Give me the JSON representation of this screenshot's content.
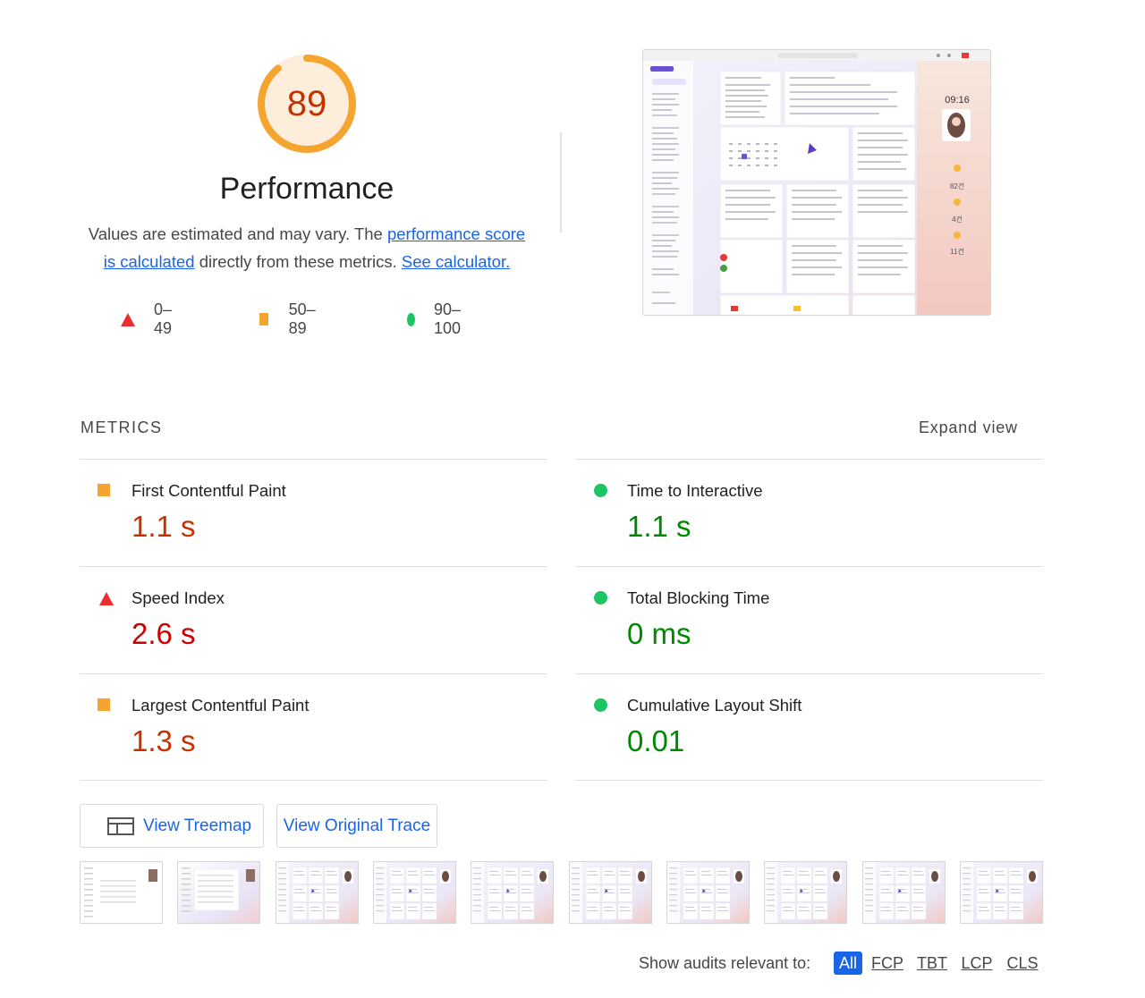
{
  "score": {
    "value": "89",
    "fraction": 0.89,
    "title": "Performance",
    "desc_prefix": "Values are estimated and may vary. The ",
    "desc_link_1a": "performance score",
    "desc_link_1b": "is calculated",
    "desc_middle": " directly from these metrics. ",
    "desc_link_2": "See calculator.",
    "color_ring": "#f5a52f",
    "color_track": "#fdeedb",
    "color_text": "#c33300"
  },
  "legend": [
    {
      "icon": "triangle-icon",
      "label": "0–49"
    },
    {
      "icon": "square-icon",
      "label": "50–89"
    },
    {
      "icon": "circle-icon",
      "label": "90–100"
    }
  ],
  "metrics": {
    "header": "METRICS",
    "expand": "Expand view",
    "items": [
      {
        "label": "First Contentful Paint",
        "value": "1.1 s",
        "rating": "average"
      },
      {
        "label": "Time to Interactive",
        "value": "1.1 s",
        "rating": "pass"
      },
      {
        "label": "Speed Index",
        "value": "2.6 s",
        "rating": "fail"
      },
      {
        "label": "Total Blocking Time",
        "value": "0 ms",
        "rating": "pass"
      },
      {
        "label": "Largest Contentful Paint",
        "value": "1.3 s",
        "rating": "average"
      },
      {
        "label": "Cumulative Layout Shift",
        "value": "0.01",
        "rating": "pass"
      }
    ]
  },
  "buttons": {
    "treemap": "View Treemap",
    "trace": "View Original Trace"
  },
  "final_screenshot": {
    "time": "09:16",
    "stat_1": "82건",
    "stat_2": "4건",
    "stat_3": "11건"
  },
  "filter": {
    "label": "Show audits relevant to:",
    "chips": [
      "All",
      "FCP",
      "TBT",
      "LCP",
      "CLS"
    ]
  },
  "colors": {
    "fail": "#eb2d2d",
    "average": "#f5a52f",
    "pass": "#1bc464",
    "link": "#1a65e7"
  }
}
